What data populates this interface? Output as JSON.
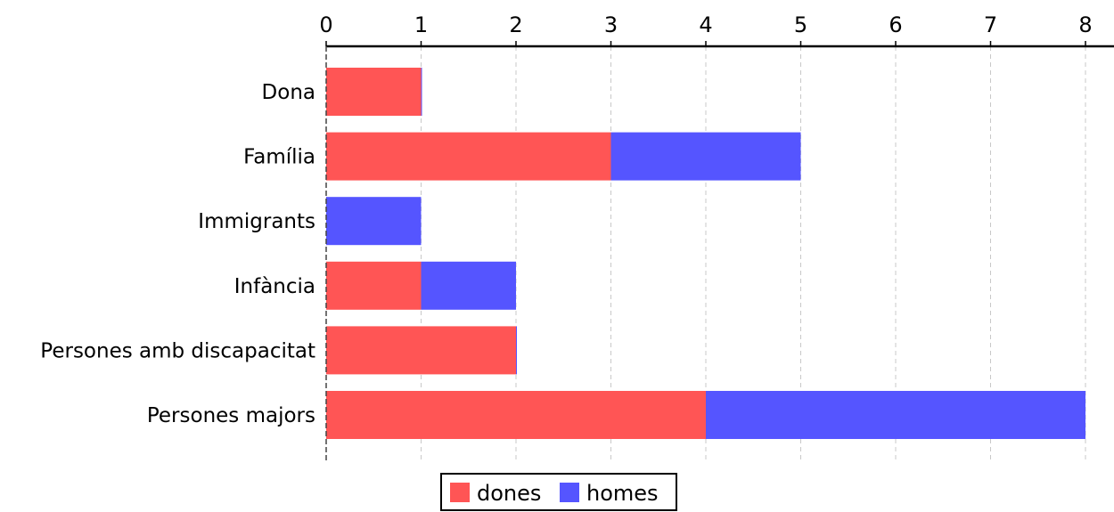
{
  "chart_data": {
    "type": "bar",
    "orientation": "horizontal",
    "stacked": true,
    "title": "",
    "xlabel": "",
    "ylabel": "",
    "categories": [
      "Dona",
      "Família",
      "Immigrants",
      "Infància",
      "Persones amb discapacitat",
      "Persones majors"
    ],
    "series": [
      {
        "name": "dones",
        "color": "#ff5555",
        "values": [
          1,
          3,
          0,
          1,
          2,
          4
        ]
      },
      {
        "name": "homes",
        "color": "#5555ff",
        "values": [
          0,
          2,
          1,
          1,
          0,
          4
        ]
      }
    ],
    "xlim": [
      0,
      8
    ],
    "xticks": [
      "0",
      "1",
      "2",
      "3",
      "4",
      "5",
      "6",
      "7",
      "8"
    ],
    "x_axis_position": "top",
    "grid": {
      "x": true,
      "style": "dashed"
    },
    "legend_position": "bottom-center"
  }
}
